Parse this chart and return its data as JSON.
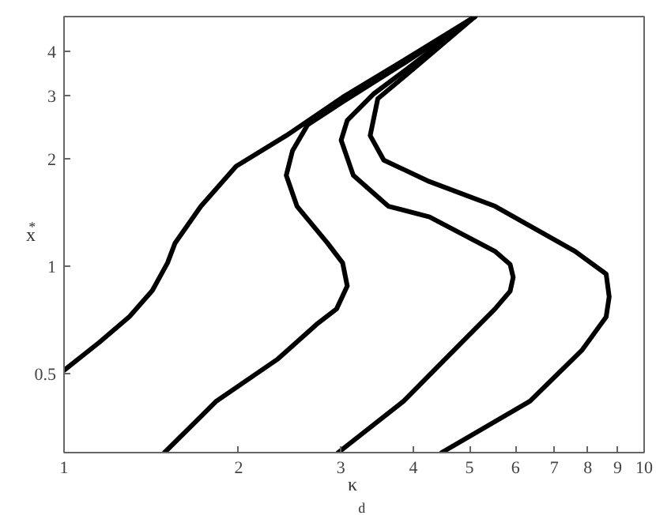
{
  "chart_data": {
    "type": "line",
    "xlabel": "κ$_{d}$",
    "ylabel": "x$^{*}$",
    "log": "xy",
    "grid": false,
    "marker": "none",
    "line_style": "solid",
    "xlim": [
      1,
      10
    ],
    "ylim": [
      0.3,
      5
    ],
    "xticks": [
      1,
      2,
      3,
      4,
      5,
      6,
      7,
      8,
      9,
      10
    ],
    "yticks": [
      0.5,
      1,
      2,
      3,
      4
    ],
    "series": [
      {
        "color": "#000000",
        "x": [
          1,
          1.149,
          1.297,
          1.42,
          1.508,
          1.554,
          1.722,
          1.98,
          2.416,
          3.022,
          3.849,
          5.11
        ],
        "values": [
          0.51,
          0.61,
          0.722,
          0.854,
          1.02,
          1.16,
          1.471,
          1.903,
          2.32,
          2.971,
          3.768,
          5
        ]
      },
      {
        "color": "#000000",
        "x": [
          1.49,
          1.83,
          2.33,
          2.727,
          2.95,
          3.078,
          3.022,
          2.845,
          2.521,
          2.416,
          2.476,
          2.63,
          3.022,
          3.849,
          5.11
        ],
        "values": [
          0.3,
          0.418,
          0.547,
          0.687,
          0.758,
          0.879,
          1.02,
          1.16,
          1.471,
          1.794,
          2.101,
          2.486,
          2.884,
          3.694,
          5
        ]
      },
      {
        "color": "#000000",
        "x": [
          2.968,
          3.849,
          4.698,
          5.532,
          5.875,
          5.947,
          5.875,
          5.53,
          4.265,
          3.623,
          3.153,
          3.004,
          3.078,
          3.412,
          3.92,
          5.11
        ],
        "values": [
          0.3,
          0.418,
          0.58,
          0.758,
          0.85,
          0.93,
          1.01,
          1.1,
          1.373,
          1.471,
          1.794,
          2.252,
          2.561,
          3.03,
          3.585,
          5
        ]
      },
      {
        "color": "#000000",
        "x": [
          4.476,
          6.356,
          7.806,
          8.6,
          8.704,
          8.6,
          7.6,
          5.532,
          4.265,
          3.558,
          3.371,
          3.474,
          4.016,
          5.11
        ],
        "values": [
          0.3,
          0.418,
          0.58,
          0.72,
          0.82,
          0.95,
          1.1,
          1.471,
          1.724,
          1.98,
          2.32,
          2.942,
          3.585,
          5
        ]
      }
    ]
  }
}
